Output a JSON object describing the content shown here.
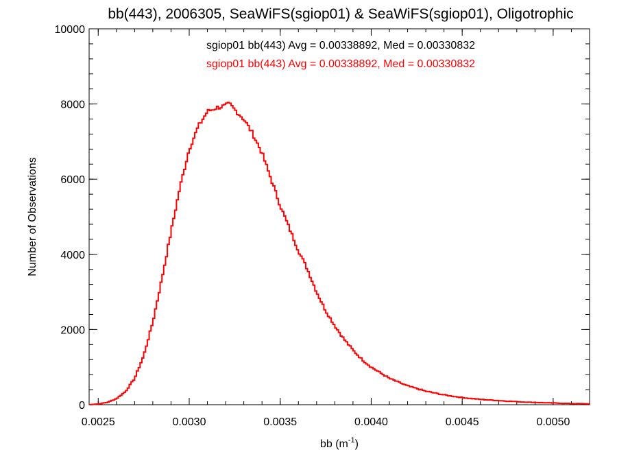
{
  "chart_data": {
    "type": "line",
    "title": "bb(443), 2006305, SeaWiFS(sgiop01) & SeaWiFS(sgiop01), Oligotrophic",
    "xlabel_prefix": "bb (m",
    "xlabel_sup": "-1",
    "xlabel_suffix": ")",
    "ylabel": "Number of Observations",
    "xlim": [
      0.00245,
      0.0052
    ],
    "ylim": [
      0,
      10000
    ],
    "x_ticks": [
      {
        "value": 0.0025,
        "label": "0.0025"
      },
      {
        "value": 0.003,
        "label": "0.0030"
      },
      {
        "value": 0.0035,
        "label": "0.0035"
      },
      {
        "value": 0.004,
        "label": "0.0040"
      },
      {
        "value": 0.0045,
        "label": "0.0045"
      },
      {
        "value": 0.005,
        "label": "0.0050"
      }
    ],
    "y_ticks": [
      {
        "value": 0,
        "label": "0"
      },
      {
        "value": 2000,
        "label": "2000"
      },
      {
        "value": 4000,
        "label": "4000"
      },
      {
        "value": 6000,
        "label": "6000"
      },
      {
        "value": 8000,
        "label": "8000"
      },
      {
        "value": 10000,
        "label": "10000"
      }
    ],
    "grid": false,
    "annotations": [
      {
        "text": "sgiop01 bb(443) Avg = 0.00338892, Med = 0.00330832",
        "color": "#000000"
      },
      {
        "text": "sgiop01 bb(443) Avg = 0.00338892, Med = 0.00330832",
        "color": "#ff0000"
      }
    ],
    "series": [
      {
        "color": "#ff0000",
        "style": "step",
        "x": [
          0.00245,
          0.0025,
          0.00255,
          0.0026,
          0.00265,
          0.0027,
          0.00275,
          0.0028,
          0.00285,
          0.0029,
          0.00295,
          0.003,
          0.00305,
          0.0031,
          0.00315,
          0.0032,
          0.00322,
          0.00325,
          0.0033,
          0.00335,
          0.0034,
          0.00345,
          0.0035,
          0.00355,
          0.0036,
          0.00365,
          0.0037,
          0.00375,
          0.0038,
          0.00385,
          0.0039,
          0.00395,
          0.004,
          0.0041,
          0.0042,
          0.0043,
          0.0044,
          0.0045,
          0.0046,
          0.0047,
          0.0048,
          0.0049,
          0.005,
          0.0051,
          0.0052
        ],
        "y": [
          0,
          20,
          60,
          160,
          350,
          700,
          1300,
          2200,
          3350,
          4600,
          5800,
          6800,
          7400,
          7800,
          7900,
          7950,
          8000,
          7850,
          7600,
          7200,
          6700,
          6000,
          5300,
          4700,
          4100,
          3600,
          3000,
          2500,
          2100,
          1750,
          1450,
          1200,
          1000,
          700,
          500,
          360,
          260,
          190,
          140,
          110,
          80,
          60,
          45,
          30,
          25
        ]
      }
    ]
  }
}
